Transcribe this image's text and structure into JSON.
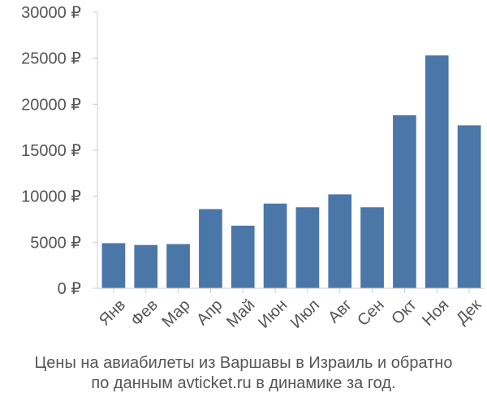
{
  "chart_data": {
    "type": "bar",
    "categories": [
      "Янв",
      "Фев",
      "Мар",
      "Апр",
      "Май",
      "Июн",
      "Июл",
      "Авг",
      "Сен",
      "Окт",
      "Ноя",
      "Дек"
    ],
    "values": [
      4900,
      4700,
      4800,
      8600,
      6800,
      9200,
      8800,
      10200,
      8800,
      18800,
      25300,
      17700
    ],
    "ylim": [
      0,
      30000
    ],
    "yticks": [
      0,
      5000,
      10000,
      15000,
      20000,
      25000,
      30000
    ],
    "ytick_labels": [
      "0 ₽",
      "5000 ₽",
      "10000 ₽",
      "15000 ₽",
      "20000 ₽",
      "25000 ₽",
      "30000 ₽"
    ],
    "grid": false,
    "bar_color": "#4a76a8",
    "caption_lines": [
      "Цены на авиабилеты из Варшавы в Израиль и обратно",
      "по данным avticket.ru в динамике за год."
    ]
  }
}
